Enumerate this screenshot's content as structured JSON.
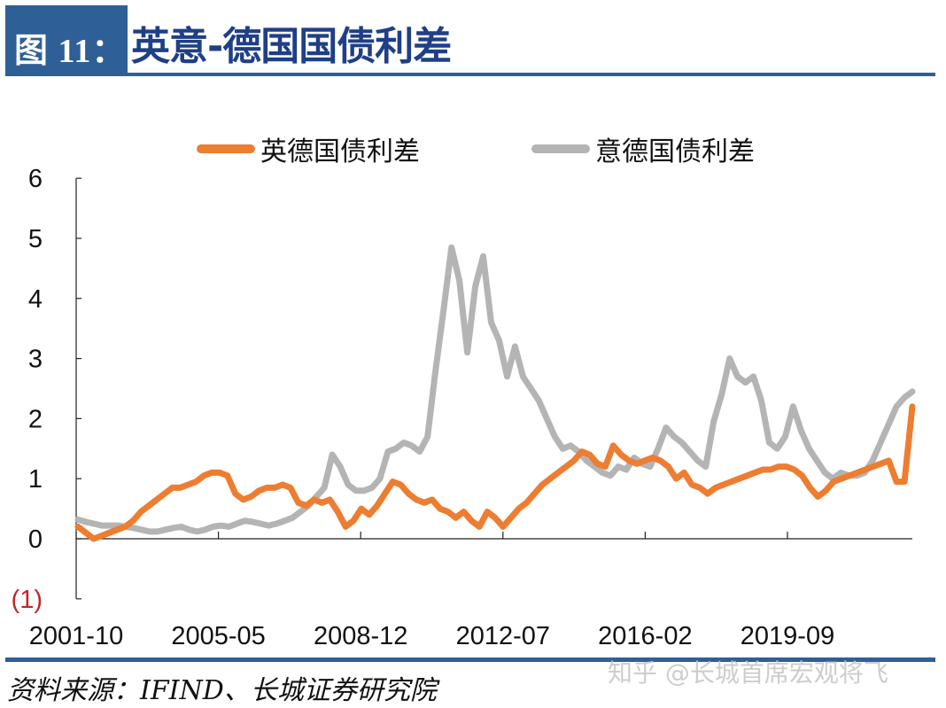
{
  "header": {
    "figure_label": "图 11：",
    "title": "英意-德国国债利差"
  },
  "legend": [
    {
      "label": "英德国债利差",
      "color": "#ed7d31"
    },
    {
      "label": "意德国债利差",
      "color": "#b4b4b4"
    }
  ],
  "footer": {
    "source": "资料来源：IFIND、长城证券研究院",
    "watermark": "知乎 @长城首席宏观将飞"
  },
  "chart_data": {
    "type": "line",
    "title": "英意-德国国债利差",
    "xlabel": "",
    "ylabel": "",
    "ylim": [
      -1,
      6
    ],
    "yticks": [
      6,
      5,
      4,
      3,
      2,
      1,
      0,
      -1
    ],
    "ytick_labels": [
      "6",
      "5",
      "4",
      "3",
      "2",
      "1",
      "0",
      "(1)"
    ],
    "xtick_labels": [
      "2001-10",
      "2005-05",
      "2008-12",
      "2012-07",
      "2016-02",
      "2019-09"
    ],
    "x_start": "2001-10",
    "x_step_months": 3,
    "grid": false,
    "legend_position": "top",
    "series": [
      {
        "name": "英德国债利差",
        "color": "#ed7d31",
        "values": [
          0.2,
          0.1,
          0.0,
          0.05,
          0.1,
          0.15,
          0.2,
          0.3,
          0.45,
          0.55,
          0.65,
          0.75,
          0.85,
          0.85,
          0.9,
          0.95,
          1.05,
          1.1,
          1.1,
          1.05,
          0.75,
          0.65,
          0.7,
          0.8,
          0.85,
          0.85,
          0.9,
          0.85,
          0.6,
          0.55,
          0.65,
          0.6,
          0.65,
          0.45,
          0.2,
          0.3,
          0.5,
          0.4,
          0.55,
          0.75,
          0.95,
          0.9,
          0.75,
          0.65,
          0.6,
          0.65,
          0.5,
          0.45,
          0.35,
          0.45,
          0.3,
          0.2,
          0.45,
          0.35,
          0.2,
          0.35,
          0.5,
          0.6,
          0.75,
          0.9,
          1.0,
          1.1,
          1.2,
          1.3,
          1.45,
          1.4,
          1.25,
          1.2,
          1.55,
          1.4,
          1.3,
          1.25,
          1.3,
          1.35,
          1.3,
          1.2,
          1.0,
          1.1,
          0.9,
          0.85,
          0.75,
          0.85,
          0.9,
          0.95,
          1.0,
          1.05,
          1.1,
          1.15,
          1.15,
          1.2,
          1.2,
          1.15,
          1.05,
          0.85,
          0.7,
          0.8,
          0.95,
          1.0,
          1.05,
          1.1,
          1.15,
          1.2,
          1.25,
          1.3,
          0.95,
          0.95,
          2.2
        ]
      },
      {
        "name": "意德国债利差",
        "color": "#b4b4b4",
        "values": [
          0.32,
          0.28,
          0.25,
          0.22,
          0.22,
          0.22,
          0.2,
          0.18,
          0.15,
          0.12,
          0.12,
          0.15,
          0.18,
          0.2,
          0.15,
          0.12,
          0.15,
          0.2,
          0.22,
          0.2,
          0.25,
          0.3,
          0.28,
          0.25,
          0.22,
          0.25,
          0.3,
          0.35,
          0.45,
          0.55,
          0.7,
          0.85,
          1.4,
          1.2,
          0.9,
          0.8,
          0.8,
          0.85,
          1.0,
          1.45,
          1.5,
          1.6,
          1.55,
          1.45,
          1.7,
          2.8,
          3.8,
          4.85,
          4.3,
          3.1,
          4.2,
          4.7,
          3.6,
          3.3,
          2.7,
          3.2,
          2.7,
          2.5,
          2.3,
          2.0,
          1.7,
          1.5,
          1.55,
          1.45,
          1.3,
          1.2,
          1.1,
          1.05,
          1.2,
          1.15,
          1.35,
          1.25,
          1.2,
          1.5,
          1.85,
          1.7,
          1.6,
          1.45,
          1.3,
          1.2,
          1.95,
          2.4,
          3.0,
          2.7,
          2.6,
          2.7,
          2.3,
          1.6,
          1.5,
          1.7,
          2.2,
          1.8,
          1.5,
          1.3,
          1.1,
          1.0,
          1.1,
          1.05,
          1.05,
          1.1,
          1.3,
          1.6,
          1.9,
          2.2,
          2.35,
          2.45
        ]
      }
    ]
  }
}
